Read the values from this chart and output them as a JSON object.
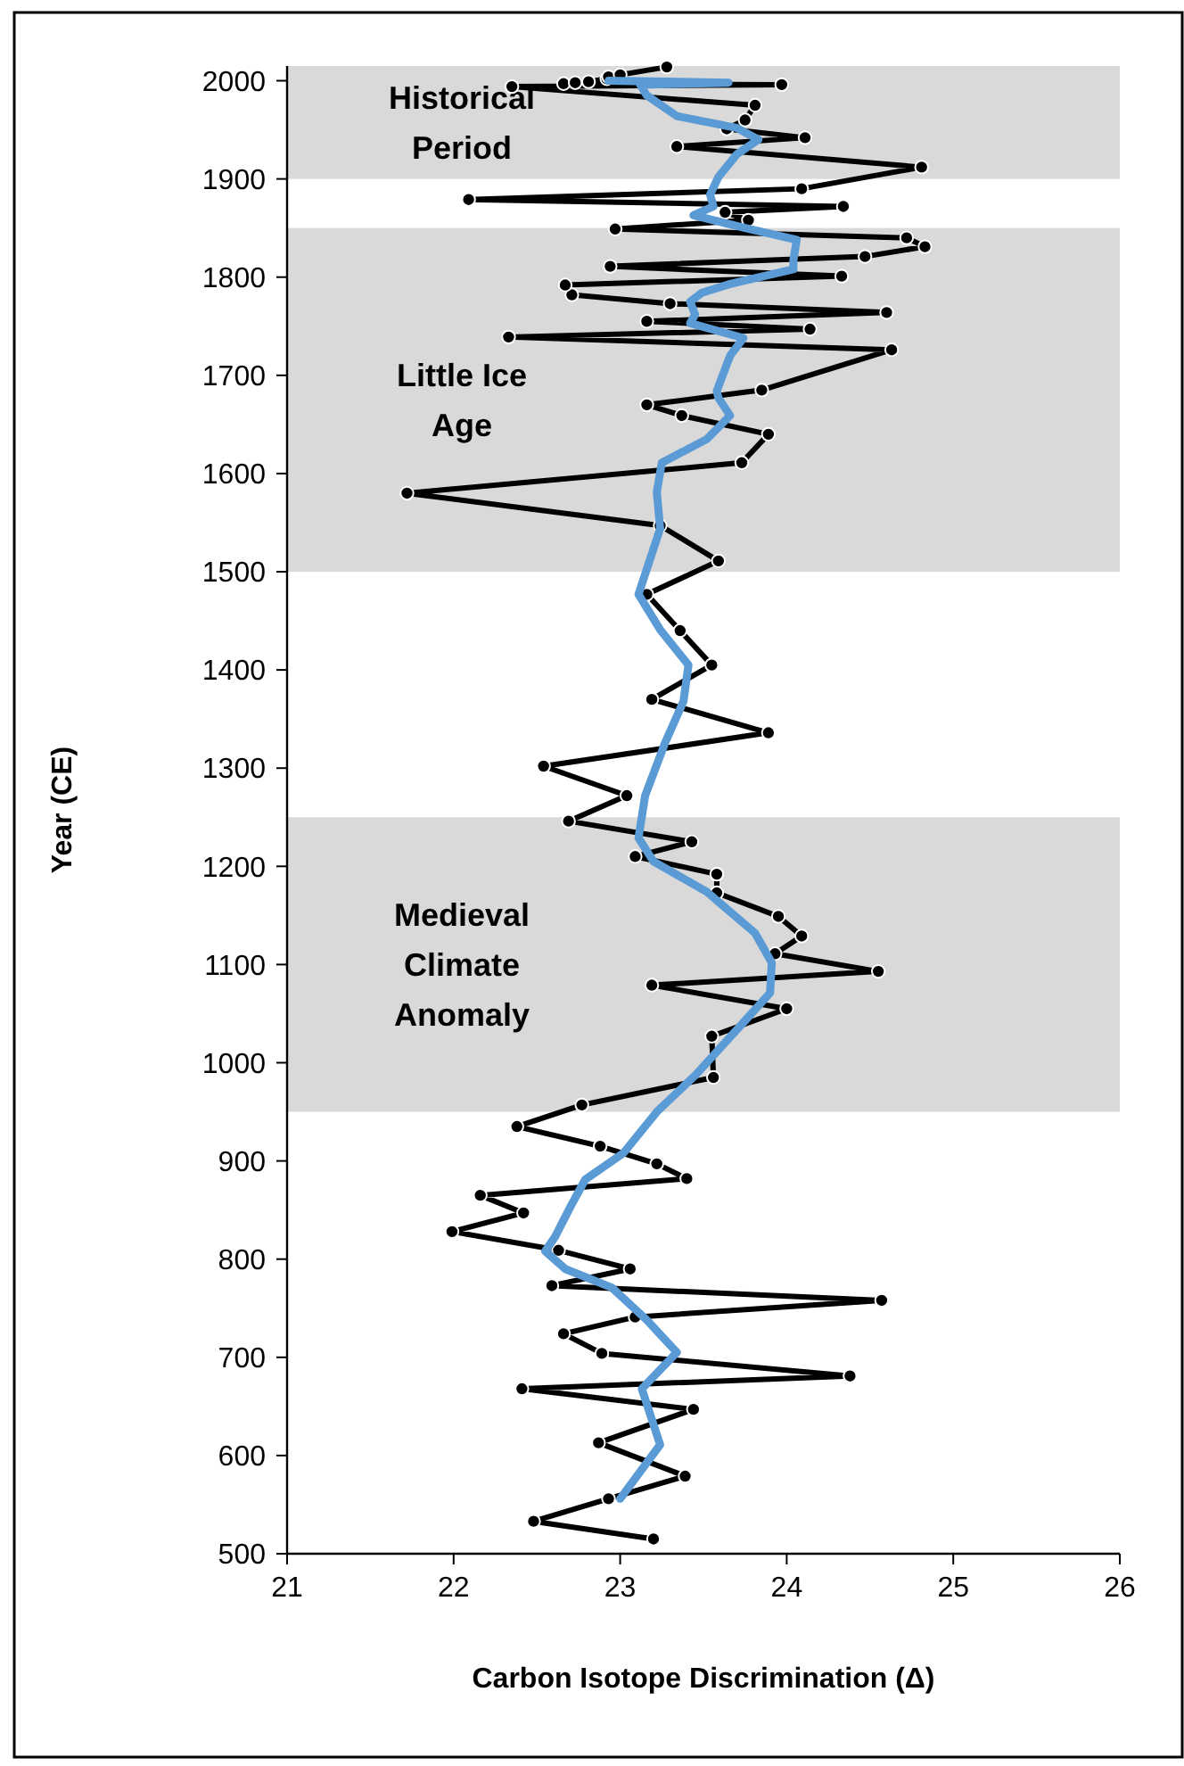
{
  "chart_data": {
    "type": "line",
    "orientation": "horizontal",
    "xlabel": "Carbon Isotope Discrimination (Δ)",
    "ylabel": "Year (CE)",
    "xlim": [
      21,
      26
    ],
    "xticks": [
      21,
      22,
      23,
      24,
      25,
      26
    ],
    "ylim": [
      500,
      2015
    ],
    "yticks": [
      500,
      600,
      700,
      800,
      900,
      1000,
      1100,
      1200,
      1300,
      1400,
      1500,
      1600,
      1700,
      1800,
      1900,
      2000
    ],
    "bands": [
      {
        "axis": "y",
        "from": 1900,
        "to": 2015,
        "label": "Historical Period",
        "color": "#d9d9d9"
      },
      {
        "axis": "y",
        "from": 1500,
        "to": 1850,
        "label": "Little Ice Age",
        "color": "#d9d9d9"
      },
      {
        "axis": "y",
        "from": 950,
        "to": 1250,
        "label": "Medieval Climate Anomaly",
        "color": "#d9d9d9"
      }
    ],
    "series": [
      {
        "color": "#000000",
        "marker": "circle",
        "x": [
          515,
          533,
          556,
          579,
          613,
          647,
          668,
          681,
          704,
          724,
          741,
          758,
          773,
          790,
          809,
          828,
          847,
          865,
          882,
          897,
          915,
          935,
          957,
          985,
          1027,
          1055,
          1079,
          1093,
          1111,
          1129,
          1149,
          1173,
          1192,
          1210,
          1225,
          1246,
          1272,
          1302,
          1336,
          1370,
          1405,
          1440,
          1477,
          1511,
          1547,
          1580,
          1611,
          1640,
          1659,
          1670,
          1685,
          1726,
          1739,
          1747,
          1755,
          1764,
          1773,
          1782,
          1792,
          1801,
          1811,
          1821,
          1831,
          1840,
          1849,
          1858,
          1866,
          1872,
          1879,
          1890,
          1912,
          1933,
          1942,
          1951,
          1960,
          1975,
          1994,
          1996,
          1997,
          1998,
          1999,
          2002,
          2004,
          2006,
          2014
        ],
        "values": [
          23.2,
          22.48,
          22.93,
          23.39,
          22.87,
          23.44,
          22.41,
          24.38,
          22.89,
          22.66,
          23.09,
          24.57,
          22.59,
          23.06,
          22.63,
          21.99,
          22.42,
          22.16,
          23.4,
          23.22,
          22.88,
          22.38,
          22.77,
          23.56,
          23.55,
          24,
          23.19,
          24.55,
          23.93,
          24.09,
          23.95,
          23.58,
          23.58,
          23.09,
          23.43,
          22.69,
          23.04,
          22.54,
          23.89,
          23.19,
          23.55,
          23.36,
          23.16,
          23.59,
          23.24,
          21.72,
          23.73,
          23.89,
          23.37,
          23.16,
          23.85,
          24.63,
          22.33,
          24.14,
          23.16,
          24.6,
          23.3,
          22.71,
          22.67,
          24.33,
          22.94,
          24.47,
          24.83,
          24.72,
          22.97,
          23.77,
          23.63,
          24.34,
          22.09,
          24.09,
          24.81,
          23.34,
          24.11,
          23.64,
          23.75,
          23.81,
          22.35,
          23.97,
          22.66,
          22.73,
          22.81,
          22.92,
          22.93,
          23,
          23.28
        ]
      },
      {
        "color": "#5b9bd5",
        "marker": "none",
        "x": [
          556,
          611,
          668,
          705,
          738,
          771,
          790,
          808,
          823,
          853,
          881,
          908,
          950,
          987,
          1041,
          1071,
          1102,
          1132,
          1174,
          1205,
          1229,
          1272,
          1326,
          1368,
          1405,
          1441,
          1477,
          1544,
          1581,
          1611,
          1635,
          1659,
          1677,
          1684,
          1720,
          1738,
          1753,
          1762,
          1775,
          1784,
          1793,
          1808,
          1817,
          1838,
          1850,
          1863,
          1872,
          1884,
          1902,
          1925,
          1940,
          1952,
          1964,
          1985,
          1996,
          1998,
          2000
        ],
        "values": [
          23,
          23.24,
          23.13,
          23.34,
          23.16,
          22.95,
          22.67,
          22.55,
          22.61,
          22.7,
          22.79,
          23.02,
          23.22,
          23.45,
          23.74,
          23.9,
          23.91,
          23.81,
          23.52,
          23.2,
          23.11,
          23.15,
          23.27,
          23.38,
          23.41,
          23.24,
          23.11,
          23.24,
          23.22,
          23.25,
          23.52,
          23.66,
          23.59,
          23.58,
          23.66,
          23.74,
          23.42,
          23.45,
          23.42,
          23.49,
          23.66,
          24.04,
          24.04,
          24.06,
          23.75,
          23.44,
          23.56,
          23.54,
          23.59,
          23.7,
          23.83,
          23.7,
          23.34,
          23.16,
          23.12,
          23.65,
          22.93
        ]
      }
    ]
  }
}
